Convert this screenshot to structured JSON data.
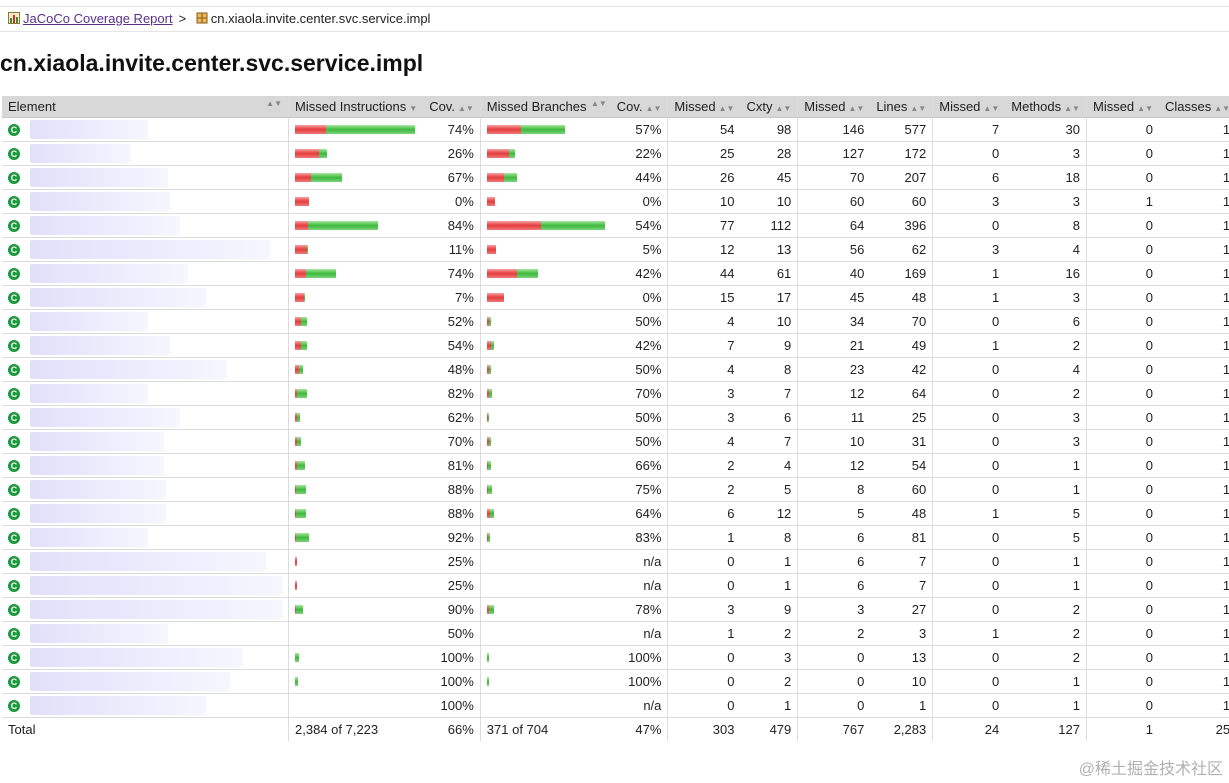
{
  "breadcrumb": {
    "root_label": "JaCoCo Coverage Report",
    "separator": ">",
    "current": "cn.xiaola.invite.center.svc.service.impl"
  },
  "title": "cn.xiaola.invite.center.svc.service.impl",
  "columns": {
    "element": "Element",
    "missed_instructions": "Missed Instructions",
    "cov1": "Cov.",
    "missed_branches": "Missed Branches",
    "cov2": "Cov.",
    "missed_cxty": "Missed",
    "cxty": "Cxty",
    "missed_lines": "Missed",
    "lines": "Lines",
    "missed_methods": "Missed",
    "methods": "Methods",
    "missed_classes": "Missed",
    "classes": "Classes"
  },
  "rows": [
    {
      "icov": "74%",
      "bcov": "57%",
      "mc": "54",
      "c": "98",
      "ml": "146",
      "l": "577",
      "mm": "7",
      "m": "30",
      "mcl": "0",
      "cl": "1",
      "ibar": [
        0.261,
        0.739
      ],
      "bbar": [
        0.43,
        0.57
      ],
      "iw": 120,
      "bw": 78
    },
    {
      "icov": "26%",
      "bcov": "22%",
      "mc": "25",
      "c": "28",
      "ml": "127",
      "l": "172",
      "mm": "0",
      "m": "3",
      "mcl": "0",
      "cl": "1",
      "ibar": [
        0.74,
        0.26
      ],
      "bbar": [
        0.78,
        0.22
      ],
      "iw": 32,
      "bw": 28
    },
    {
      "icov": "67%",
      "bcov": "44%",
      "mc": "26",
      "c": "45",
      "ml": "70",
      "l": "207",
      "mm": "6",
      "m": "18",
      "mcl": "0",
      "cl": "1",
      "ibar": [
        0.33,
        0.67
      ],
      "bbar": [
        0.56,
        0.44
      ],
      "iw": 47,
      "bw": 30
    },
    {
      "icov": "0%",
      "bcov": "0%",
      "mc": "10",
      "c": "10",
      "ml": "60",
      "l": "60",
      "mm": "3",
      "m": "3",
      "mcl": "1",
      "cl": "1",
      "ibar": [
        1,
        0
      ],
      "bbar": [
        1,
        0
      ],
      "iw": 14,
      "bw": 8
    },
    {
      "icov": "84%",
      "bcov": "54%",
      "mc": "77",
      "c": "112",
      "ml": "64",
      "l": "396",
      "mm": "0",
      "m": "8",
      "mcl": "0",
      "cl": "1",
      "ibar": [
        0.16,
        0.84
      ],
      "bbar": [
        0.46,
        0.54
      ],
      "iw": 83,
      "bw": 118
    },
    {
      "icov": "11%",
      "bcov": "5%",
      "mc": "12",
      "c": "13",
      "ml": "56",
      "l": "62",
      "mm": "3",
      "m": "4",
      "mcl": "0",
      "cl": "1",
      "ibar": [
        0.89,
        0.11
      ],
      "bbar": [
        0.95,
        0.05
      ],
      "iw": 13,
      "bw": 9
    },
    {
      "icov": "74%",
      "bcov": "42%",
      "mc": "44",
      "c": "61",
      "ml": "40",
      "l": "169",
      "mm": "1",
      "m": "16",
      "mcl": "0",
      "cl": "1",
      "ibar": [
        0.26,
        0.74
      ],
      "bbar": [
        0.58,
        0.42
      ],
      "iw": 41,
      "bw": 51
    },
    {
      "icov": "7%",
      "bcov": "0%",
      "mc": "15",
      "c": "17",
      "ml": "45",
      "l": "48",
      "mm": "1",
      "m": "3",
      "mcl": "0",
      "cl": "1",
      "ibar": [
        0.93,
        0.07
      ],
      "bbar": [
        1,
        0
      ],
      "iw": 10,
      "bw": 17
    },
    {
      "icov": "52%",
      "bcov": "50%",
      "mc": "4",
      "c": "10",
      "ml": "34",
      "l": "70",
      "mm": "0",
      "m": "6",
      "mcl": "0",
      "cl": "1",
      "ibar": [
        0.48,
        0.52
      ],
      "bbar": [
        0.5,
        0.5
      ],
      "iw": 12,
      "bw": 4
    },
    {
      "icov": "54%",
      "bcov": "42%",
      "mc": "7",
      "c": "9",
      "ml": "21",
      "l": "49",
      "mm": "1",
      "m": "2",
      "mcl": "0",
      "cl": "1",
      "ibar": [
        0.46,
        0.54
      ],
      "bbar": [
        0.58,
        0.42
      ],
      "iw": 12,
      "bw": 7
    },
    {
      "icov": "48%",
      "bcov": "50%",
      "mc": "4",
      "c": "8",
      "ml": "23",
      "l": "42",
      "mm": "0",
      "m": "4",
      "mcl": "0",
      "cl": "1",
      "ibar": [
        0.52,
        0.48
      ],
      "bbar": [
        0.5,
        0.5
      ],
      "iw": 8,
      "bw": 4
    },
    {
      "icov": "82%",
      "bcov": "70%",
      "mc": "3",
      "c": "7",
      "ml": "12",
      "l": "64",
      "mm": "0",
      "m": "2",
      "mcl": "0",
      "cl": "1",
      "ibar": [
        0.18,
        0.82
      ],
      "bbar": [
        0.3,
        0.7
      ],
      "iw": 12,
      "bw": 5
    },
    {
      "icov": "62%",
      "bcov": "50%",
      "mc": "3",
      "c": "6",
      "ml": "11",
      "l": "25",
      "mm": "0",
      "m": "3",
      "mcl": "0",
      "cl": "1",
      "ibar": [
        0.38,
        0.62
      ],
      "bbar": [
        0.5,
        0.5
      ],
      "iw": 5,
      "bw": 2
    },
    {
      "icov": "70%",
      "bcov": "50%",
      "mc": "4",
      "c": "7",
      "ml": "10",
      "l": "31",
      "mm": "0",
      "m": "3",
      "mcl": "0",
      "cl": "1",
      "ibar": [
        0.3,
        0.7
      ],
      "bbar": [
        0.5,
        0.5
      ],
      "iw": 6,
      "bw": 4
    },
    {
      "icov": "81%",
      "bcov": "66%",
      "mc": "2",
      "c": "4",
      "ml": "12",
      "l": "54",
      "mm": "0",
      "m": "1",
      "mcl": "0",
      "cl": "1",
      "ibar": [
        0.19,
        0.81
      ],
      "bbar": [
        0.34,
        0.66
      ],
      "iw": 10,
      "bw": 4
    },
    {
      "icov": "88%",
      "bcov": "75%",
      "mc": "2",
      "c": "5",
      "ml": "8",
      "l": "60",
      "mm": "0",
      "m": "1",
      "mcl": "0",
      "cl": "1",
      "ibar": [
        0.12,
        0.88
      ],
      "bbar": [
        0.25,
        0.75
      ],
      "iw": 11,
      "bw": 5
    },
    {
      "icov": "88%",
      "bcov": "64%",
      "mc": "6",
      "c": "12",
      "ml": "5",
      "l": "48",
      "mm": "1",
      "m": "5",
      "mcl": "0",
      "cl": "1",
      "ibar": [
        0.12,
        0.88
      ],
      "bbar": [
        0.36,
        0.64
      ],
      "iw": 11,
      "bw": 7
    },
    {
      "icov": "92%",
      "bcov": "83%",
      "mc": "1",
      "c": "8",
      "ml": "6",
      "l": "81",
      "mm": "0",
      "m": "5",
      "mcl": "0",
      "cl": "1",
      "ibar": [
        0.08,
        0.92
      ],
      "bbar": [
        0.17,
        0.83
      ],
      "iw": 14,
      "bw": 3
    },
    {
      "icov": "25%",
      "bcov": "n/a",
      "mc": "0",
      "c": "1",
      "ml": "6",
      "l": "7",
      "mm": "0",
      "m": "1",
      "mcl": "0",
      "cl": "1",
      "ibar": [
        0.75,
        0.25
      ],
      "bbar": null,
      "iw": 2,
      "bw": 0
    },
    {
      "icov": "25%",
      "bcov": "n/a",
      "mc": "0",
      "c": "1",
      "ml": "6",
      "l": "7",
      "mm": "0",
      "m": "1",
      "mcl": "0",
      "cl": "1",
      "ibar": [
        0.75,
        0.25
      ],
      "bbar": null,
      "iw": 2,
      "bw": 0
    },
    {
      "icov": "90%",
      "bcov": "78%",
      "mc": "3",
      "c": "9",
      "ml": "3",
      "l": "27",
      "mm": "0",
      "m": "2",
      "mcl": "0",
      "cl": "1",
      "ibar": [
        0.1,
        0.9
      ],
      "bbar": [
        0.22,
        0.78
      ],
      "iw": 8,
      "bw": 7
    },
    {
      "icov": "50%",
      "bcov": "n/a",
      "mc": "1",
      "c": "2",
      "ml": "2",
      "l": "3",
      "mm": "1",
      "m": "2",
      "mcl": "0",
      "cl": "1",
      "ibar": null,
      "bbar": null,
      "iw": 0,
      "bw": 0
    },
    {
      "icov": "100%",
      "bcov": "100%",
      "mc": "0",
      "c": "3",
      "ml": "0",
      "l": "13",
      "mm": "0",
      "m": "2",
      "mcl": "0",
      "cl": "1",
      "ibar": [
        0,
        1
      ],
      "bbar": [
        0,
        1
      ],
      "iw": 4,
      "bw": 2
    },
    {
      "icov": "100%",
      "bcov": "100%",
      "mc": "0",
      "c": "2",
      "ml": "0",
      "l": "10",
      "mm": "0",
      "m": "1",
      "mcl": "0",
      "cl": "1",
      "ibar": [
        0,
        1
      ],
      "bbar": [
        0,
        1
      ],
      "iw": 3,
      "bw": 2
    },
    {
      "icov": "100%",
      "bcov": "n/a",
      "mc": "0",
      "c": "1",
      "ml": "0",
      "l": "1",
      "mm": "0",
      "m": "1",
      "mcl": "0",
      "cl": "1",
      "ibar": null,
      "bbar": null,
      "iw": 0,
      "bw": 0
    }
  ],
  "total": {
    "label": "Total",
    "missed_instructions": "2,384 of 7,223",
    "icov": "66%",
    "missed_branches": "371 of 704",
    "bcov": "47%",
    "mc": "303",
    "c": "479",
    "ml": "767",
    "l": "2,283",
    "mm": "24",
    "m": "127",
    "mcl": "1",
    "cl": "25"
  },
  "element_icon": "class-icon",
  "watermark": "@稀土掘金技术社区",
  "colors": {
    "missed": "#e43c3c",
    "covered": "#3cb83c",
    "header_bg": "#d8d8d8",
    "link": "#5a2f8a"
  }
}
